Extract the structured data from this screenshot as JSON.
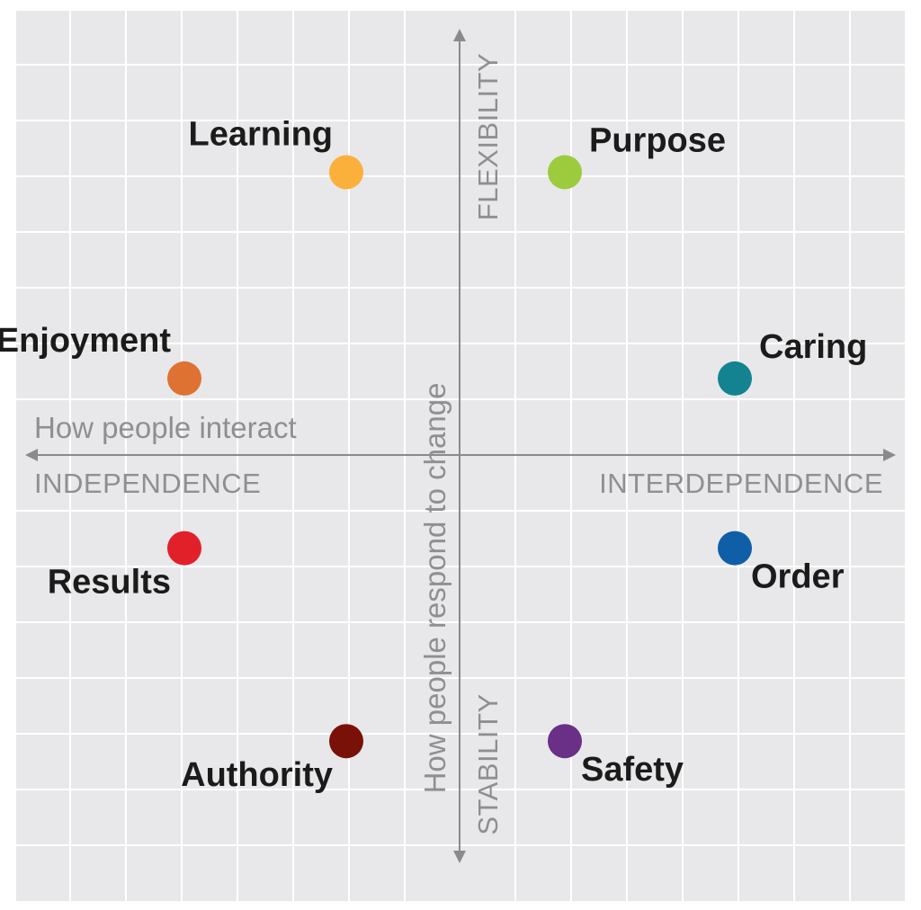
{
  "diagram": {
    "x_axis": {
      "title": "How people interact",
      "negative_pole": "INDEPENDENCE",
      "positive_pole": "INTERDEPENDENCE"
    },
    "y_axis": {
      "title": "How people respond to change",
      "positive_pole": "FLEXIBILITY",
      "negative_pole": "STABILITY"
    },
    "colors": {
      "background": "#e8e8ea",
      "grid": "#ffffff",
      "axis": "#8a8a8c",
      "axis_text": "#8f8f91",
      "label_text": "#1b1b1b"
    }
  },
  "chart_data": {
    "type": "scatter",
    "title": "",
    "xlabel": "How people interact",
    "ylabel": "How people respond to change",
    "xlim": [
      -1,
      1
    ],
    "ylim": [
      -1,
      1
    ],
    "grid": true,
    "legend": "none",
    "points": [
      {
        "label": "Learning",
        "x": -0.28,
        "y": 0.85,
        "color": "#fbb03b",
        "label_side": "above-left"
      },
      {
        "label": "Purpose",
        "x": 0.26,
        "y": 0.85,
        "color": "#9ccc3d",
        "label_side": "right-up"
      },
      {
        "label": "Enjoyment",
        "x": -0.68,
        "y": 0.23,
        "color": "#de7232",
        "label_side": "above-left"
      },
      {
        "label": "Caring",
        "x": 0.68,
        "y": 0.23,
        "color": "#138391",
        "label_side": "right-up"
      },
      {
        "label": "Results",
        "x": -0.68,
        "y": -0.28,
        "color": "#e2202a",
        "label_side": "below-left"
      },
      {
        "label": "Order",
        "x": 0.68,
        "y": -0.28,
        "color": "#0f5fa8",
        "label_side": "right-down"
      },
      {
        "label": "Authority",
        "x": -0.28,
        "y": -0.86,
        "color": "#7a1108",
        "label_side": "below-left"
      },
      {
        "label": "Safety",
        "x": 0.26,
        "y": -0.86,
        "color": "#6a2f86",
        "label_side": "right-down"
      }
    ]
  }
}
